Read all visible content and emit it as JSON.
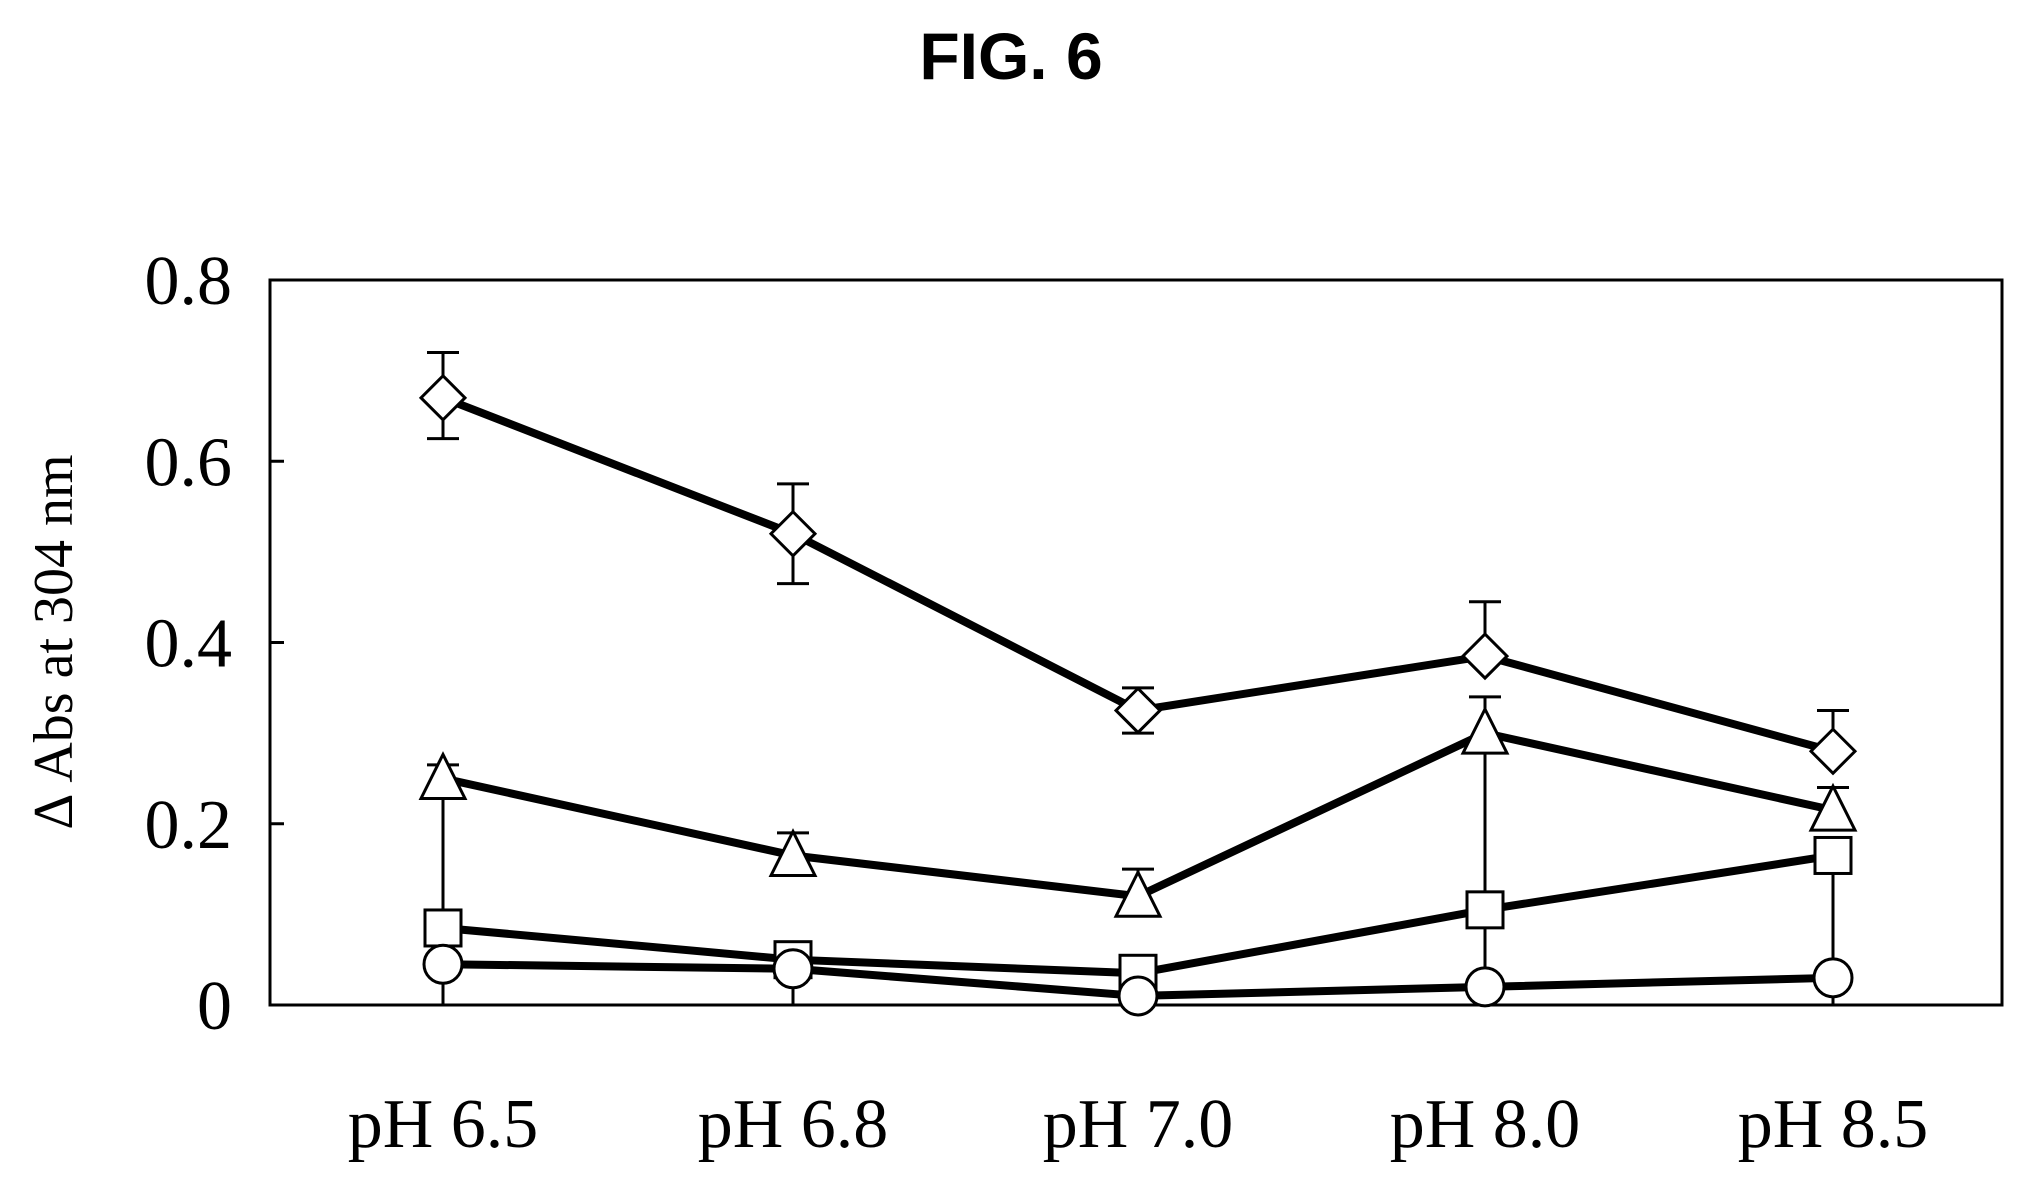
{
  "figure": {
    "title": "FIG. 6"
  },
  "chart_data": {
    "type": "line",
    "title": "",
    "xlabel": "",
    "ylabel": "Δ Abs at 304 nm",
    "categories": [
      "pH 6.5",
      "pH 6.8",
      "pH 7.0",
      "pH 8.0",
      "pH 8.5"
    ],
    "ylim": [
      0,
      0.8
    ],
    "yticks": [
      0,
      0.2,
      0.4,
      0.6,
      0.8
    ],
    "ytick_labels": [
      "0",
      "0.2",
      "0.4",
      "0.6",
      "0.8"
    ],
    "grid": false,
    "legend": "none",
    "series": [
      {
        "marker": "diamond",
        "values": [
          0.67,
          0.52,
          0.325,
          0.385,
          0.28
        ],
        "err_upper": [
          0.72,
          0.575,
          0.35,
          0.445,
          0.325
        ],
        "err_lower": [
          0.625,
          0.465,
          0.3,
          0.385,
          0.28
        ]
      },
      {
        "marker": "triangle",
        "values": [
          0.25,
          0.165,
          0.12,
          0.3,
          0.215
        ],
        "err_upper": [
          0.265,
          0.19,
          0.15,
          0.34,
          0.24
        ],
        "err_lower": [
          0.0,
          0.165,
          0.12,
          0.0,
          0.215
        ]
      },
      {
        "marker": "square",
        "values": [
          0.085,
          0.05,
          0.035,
          0.105,
          0.165
        ],
        "err_upper": [
          0.085,
          0.05,
          0.035,
          0.105,
          0.165
        ],
        "err_lower": [
          0.0,
          0.0,
          0.035,
          0.105,
          0.0
        ]
      },
      {
        "marker": "circle",
        "values": [
          0.045,
          0.04,
          0.01,
          0.02,
          0.03
        ],
        "err_upper": [
          0.045,
          0.04,
          0.01,
          0.02,
          0.03
        ],
        "err_lower": [
          0.045,
          0.0,
          0.01,
          0.02,
          0.03
        ]
      }
    ]
  }
}
